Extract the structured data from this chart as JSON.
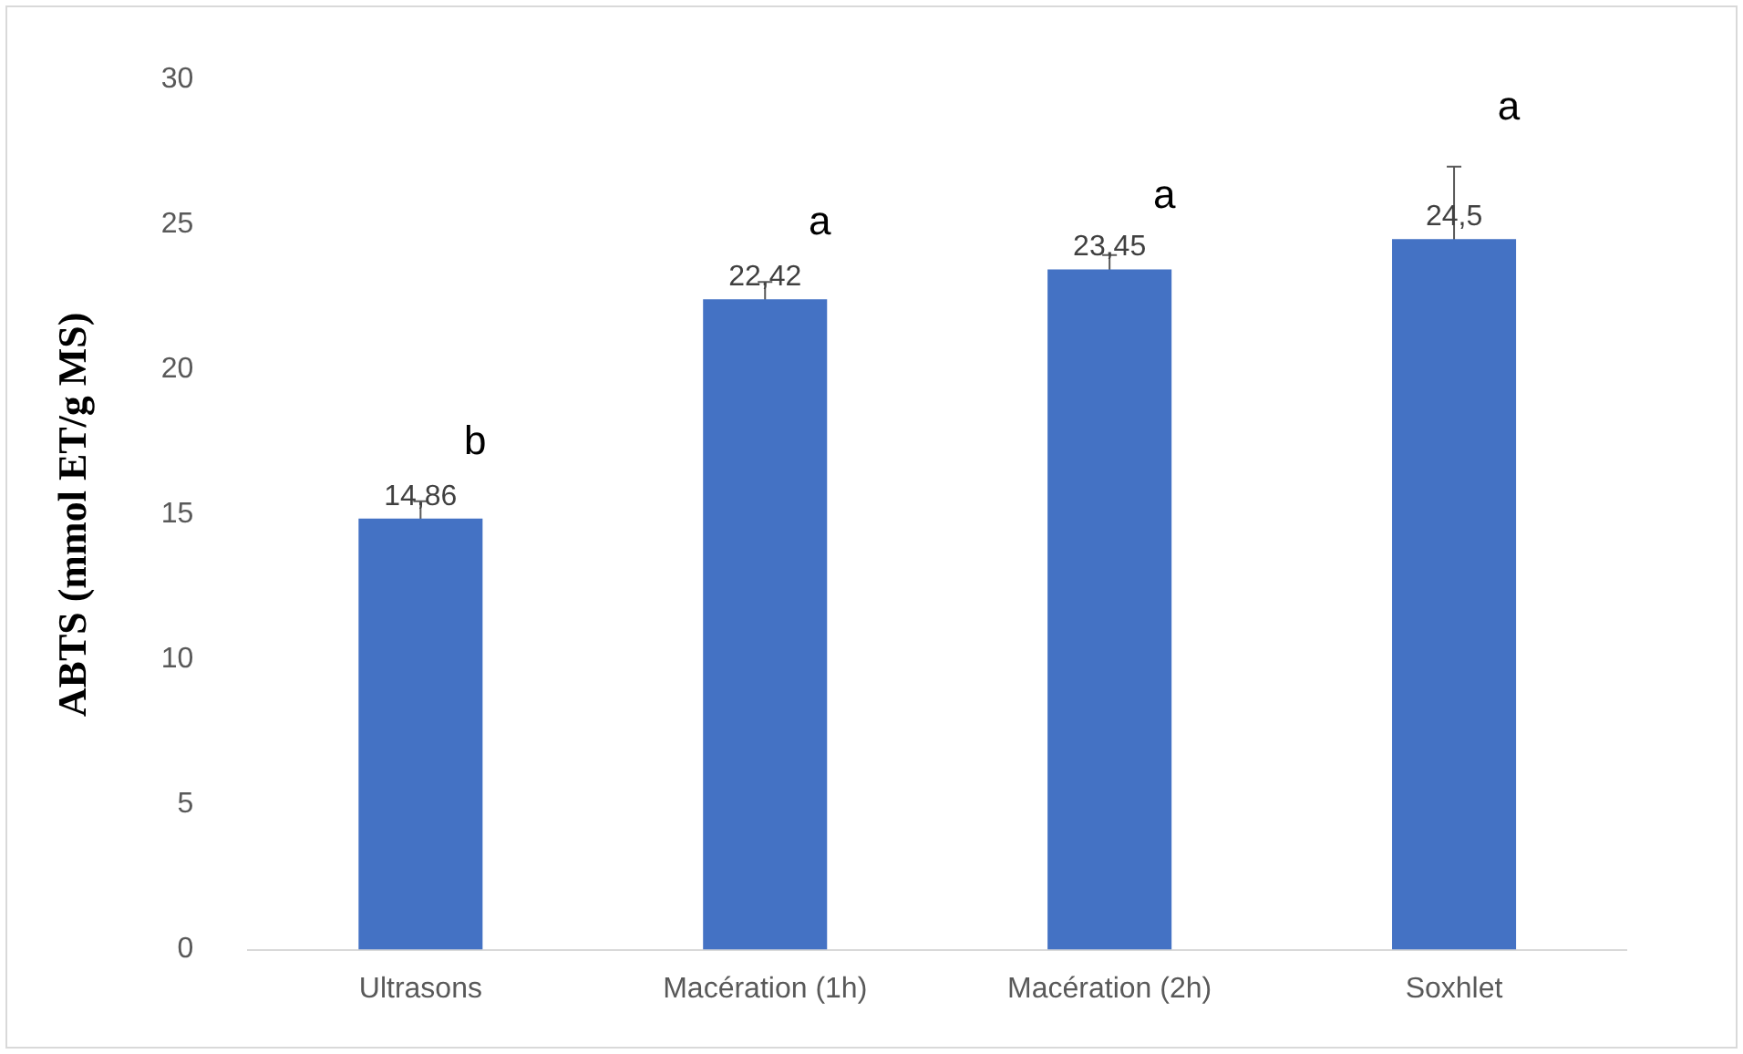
{
  "chart_data": {
    "type": "bar",
    "ylabel": "ABTS (mmol ET/g MS)",
    "categories": [
      "Ultrasons",
      "Macération (1h)",
      "Macération (2h)",
      "Soxhlet"
    ],
    "values": [
      14.86,
      22.42,
      23.45,
      24.5
    ],
    "value_labels": [
      "14,86",
      "22,42",
      "23,45",
      "24,5"
    ],
    "errors": [
      0.6,
      0.6,
      0.5,
      2.5
    ],
    "color": "#4472c4",
    "ylim": [
      0,
      30
    ],
    "yticks": [
      0,
      5,
      10,
      15,
      20,
      25,
      30
    ],
    "grid": false,
    "legend": false,
    "annotations": [
      "b",
      "a",
      "a",
      "a"
    ]
  }
}
